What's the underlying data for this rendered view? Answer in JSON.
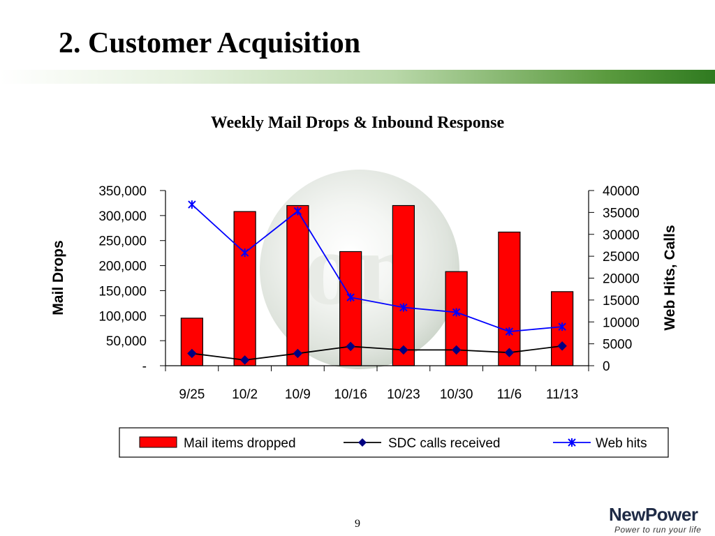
{
  "slide": {
    "title": "2.  Customer Acquisition",
    "page_number": "9"
  },
  "logo": {
    "name": "NewPower",
    "tagline": "Power to run your life"
  },
  "colors": {
    "bar_fill": "#ff0000",
    "sdc_line": "#000000",
    "sdc_marker": "#000080",
    "web_line": "#0000ff",
    "accent_green": "#2f7a20"
  },
  "chart_data": {
    "type": "bar",
    "title": "Weekly Mail Drops & Inbound Response",
    "categories": [
      "9/25",
      "10/2",
      "10/9",
      "10/16",
      "10/23",
      "10/30",
      "11/6",
      "11/13"
    ],
    "ylabel": "Mail Drops",
    "ylim": [
      0,
      350000
    ],
    "yticks": [
      {
        "value": 0,
        "label": "-"
      },
      {
        "value": 50000,
        "label": "50,000"
      },
      {
        "value": 100000,
        "label": "100,000"
      },
      {
        "value": 150000,
        "label": "150,000"
      },
      {
        "value": 200000,
        "label": "200,000"
      },
      {
        "value": 250000,
        "label": "250,000"
      },
      {
        "value": 300000,
        "label": "300,000"
      },
      {
        "value": 350000,
        "label": "350,000"
      }
    ],
    "y2label": "Web Hits, Calls",
    "y2lim": [
      0,
      40000
    ],
    "y2ticks": [
      {
        "value": 0,
        "label": "0"
      },
      {
        "value": 5000,
        "label": "5000"
      },
      {
        "value": 10000,
        "label": "10000"
      },
      {
        "value": 15000,
        "label": "15000"
      },
      {
        "value": 20000,
        "label": "20000"
      },
      {
        "value": 25000,
        "label": "25000"
      },
      {
        "value": 30000,
        "label": "30000"
      },
      {
        "value": 35000,
        "label": "35000"
      },
      {
        "value": 40000,
        "label": "40000"
      }
    ],
    "grid": false,
    "legend": "bottom",
    "series": [
      {
        "name": "Mail items dropped",
        "type": "bar",
        "axis": "left",
        "values": [
          95000,
          308000,
          320000,
          228000,
          320000,
          188000,
          267000,
          148000
        ]
      },
      {
        "name": "SDC calls received",
        "type": "line",
        "axis": "right",
        "marker": "diamond",
        "values": [
          2800,
          1300,
          2800,
          4400,
          3600,
          3600,
          3000,
          4500
        ]
      },
      {
        "name": "Web hits",
        "type": "line",
        "axis": "right",
        "marker": "star",
        "values": [
          36800,
          25800,
          35300,
          15600,
          13300,
          12200,
          7800,
          8900
        ]
      }
    ]
  }
}
